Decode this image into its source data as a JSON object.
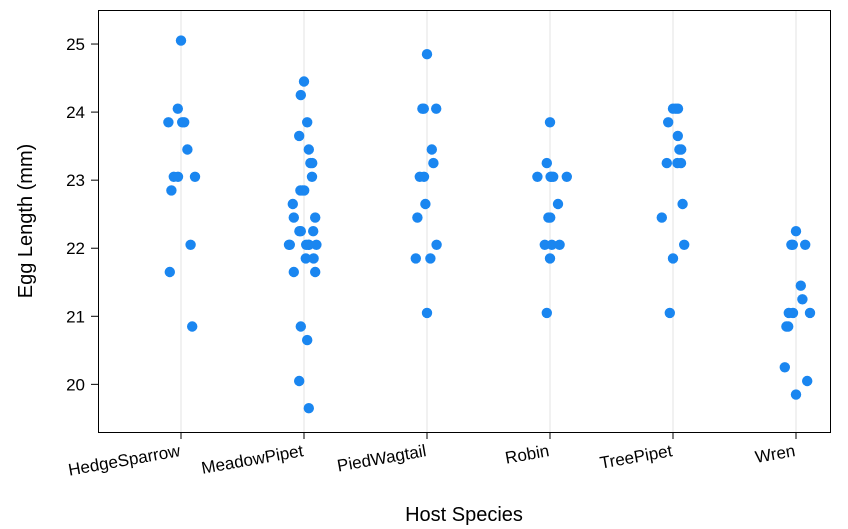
{
  "chart_data": {
    "type": "scatter",
    "subtype": "stripplot",
    "xlabel": "Host Species",
    "ylabel": "Egg Length (mm)",
    "categories": [
      "HedgeSparrow",
      "MeadowPipet",
      "PiedWagtail",
      "Robin",
      "TreePipet",
      "Wren"
    ],
    "ylim": [
      19.3,
      25.5
    ],
    "yticks": [
      20,
      21,
      22,
      23,
      24,
      25
    ],
    "grid": "vertical",
    "point_color": "#1a86f0",
    "points": [
      {
        "category": "HedgeSparrow",
        "values": [
          25.05,
          24.05,
          23.85,
          23.85,
          23.85,
          23.45,
          23.05,
          23.05,
          23.05,
          22.85,
          22.05,
          21.65,
          20.85
        ]
      },
      {
        "category": "MeadowPipet",
        "values": [
          24.45,
          24.25,
          23.85,
          23.65,
          23.45,
          23.25,
          23.25,
          23.05,
          22.85,
          22.85,
          22.85,
          22.65,
          22.45,
          22.45,
          22.25,
          22.25,
          22.25,
          22.05,
          22.05,
          22.05,
          22.05,
          22.05,
          22.05,
          21.85,
          21.85,
          21.65,
          21.65,
          20.85,
          20.65,
          20.05,
          19.65
        ]
      },
      {
        "category": "PiedWagtail",
        "values": [
          24.85,
          24.05,
          24.05,
          24.05,
          23.45,
          23.25,
          23.05,
          23.05,
          22.65,
          22.45,
          22.05,
          21.85,
          21.85,
          21.05
        ]
      },
      {
        "category": "Robin",
        "values": [
          23.85,
          23.25,
          23.05,
          23.05,
          23.05,
          23.05,
          23.05,
          22.65,
          22.45,
          22.45,
          22.05,
          22.05,
          22.05,
          21.85,
          21.05
        ]
      },
      {
        "category": "TreePipet",
        "values": [
          24.05,
          24.05,
          24.05,
          23.85,
          23.65,
          23.45,
          23.45,
          23.25,
          23.25,
          23.25,
          22.65,
          22.45,
          22.05,
          21.85,
          21.05
        ]
      },
      {
        "category": "Wren",
        "values": [
          22.25,
          22.05,
          22.05,
          22.05,
          21.45,
          21.25,
          21.05,
          21.05,
          21.05,
          20.85,
          20.85,
          20.25,
          20.05,
          19.85
        ]
      }
    ]
  }
}
